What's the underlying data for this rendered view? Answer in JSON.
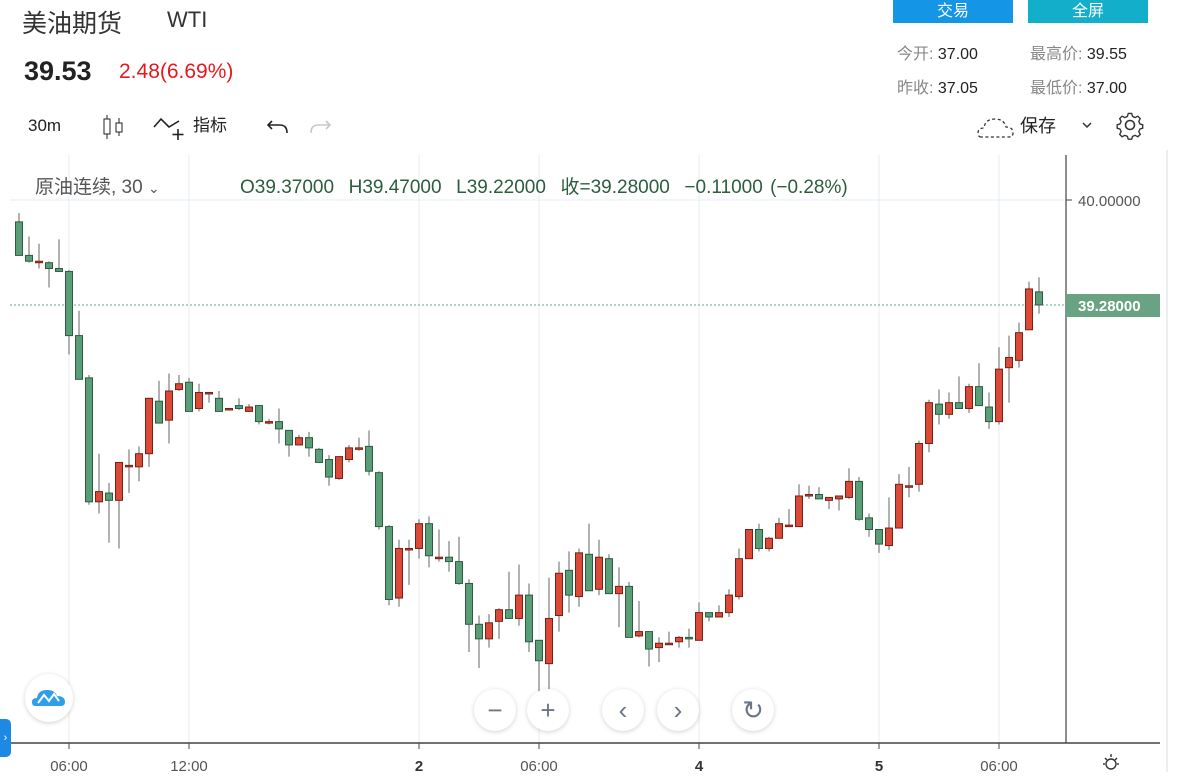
{
  "header": {
    "title": "美油期货",
    "symbol": "WTI",
    "price": "39.53",
    "change": "2.48(6.69%)",
    "change_color": "#e8191c",
    "trade_button": "交易",
    "fullscreen_button": "全屏",
    "stats": {
      "open_label": "今开:",
      "open": "37.00",
      "prev_close_label": "昨收:",
      "prev_close": "37.05",
      "high_label": "最高价:",
      "high": "39.55",
      "low_label": "最低价:",
      "low": "37.00"
    }
  },
  "toolbar": {
    "interval": "30m",
    "chart_type_icon": "candlestick-icon",
    "indicators_label": "指标",
    "undo_icon": "undo-icon",
    "redo_icon": "redo-icon",
    "save_label": "保存",
    "settings_icon": "gear-icon"
  },
  "legend": {
    "series_label": "原油连续, 30",
    "o": "O39.37000",
    "h": "H39.47000",
    "l": "L39.22000",
    "c": "收=39.28000",
    "chg": "−0.11000 (−0.28%)"
  },
  "controls": {
    "zoom_out": "−",
    "zoom_in": "+",
    "scroll_left": "‹",
    "scroll_right": "›",
    "reset": "↻"
  },
  "colors": {
    "up": "#d94a38",
    "down": "#5a9e78",
    "last_price_tag": "#6aa384",
    "trade_button": "#1595e6",
    "fullscreen_button": "#13aec9"
  },
  "chart_data": {
    "type": "candlestick",
    "interval": "30m",
    "y_tick_labels": [
      "40.00000"
    ],
    "last_price_label": "39.28000",
    "last_price": 39.28,
    "ylim": [
      36.28,
      40.31
    ],
    "grid": true,
    "x_ticks": [
      {
        "label": "06:00",
        "candle": 5,
        "day": false
      },
      {
        "label": "12:00",
        "candle": 17,
        "day": false
      },
      {
        "label": "2",
        "candle": 40,
        "day": true
      },
      {
        "label": "06:00",
        "candle": 52,
        "day": false
      },
      {
        "label": "4",
        "candle": 68,
        "day": true
      },
      {
        "label": "5",
        "candle": 86,
        "day": true
      },
      {
        "label": "06:00",
        "candle": 98,
        "day": false
      }
    ],
    "ohlc_fields": [
      "open",
      "high",
      "low",
      "close"
    ],
    "candles": [
      [
        39.85,
        39.91,
        39.62,
        39.62
      ],
      [
        39.62,
        39.75,
        39.57,
        39.58
      ],
      [
        39.58,
        39.7,
        39.53,
        39.58
      ],
      [
        39.57,
        39.58,
        39.4,
        39.53
      ],
      [
        39.53,
        39.73,
        39.51,
        39.51
      ],
      [
        39.51,
        39.52,
        38.94,
        39.07
      ],
      [
        39.07,
        39.24,
        38.77,
        38.77
      ],
      [
        38.78,
        38.8,
        37.91,
        37.93
      ],
      [
        37.93,
        38.26,
        37.85,
        38.0
      ],
      [
        37.99,
        38.06,
        37.65,
        37.94
      ],
      [
        37.94,
        38.2,
        37.61,
        38.2
      ],
      [
        38.18,
        38.29,
        37.99,
        38.18
      ],
      [
        38.17,
        38.31,
        38.07,
        38.26
      ],
      [
        38.26,
        38.64,
        38.17,
        38.64
      ],
      [
        38.62,
        38.76,
        38.47,
        38.47
      ],
      [
        38.49,
        38.81,
        38.33,
        38.69
      ],
      [
        38.7,
        38.8,
        38.69,
        38.74
      ],
      [
        38.75,
        38.78,
        38.55,
        38.55
      ],
      [
        38.57,
        38.74,
        38.55,
        38.68
      ],
      [
        38.68,
        38.68,
        38.61,
        38.68
      ],
      [
        38.64,
        38.69,
        38.55,
        38.55
      ],
      [
        38.57,
        38.57,
        38.57,
        38.57
      ],
      [
        38.59,
        38.64,
        38.56,
        38.57
      ],
      [
        38.55,
        38.6,
        38.55,
        38.58
      ],
      [
        38.59,
        38.59,
        38.46,
        38.48
      ],
      [
        38.48,
        38.5,
        38.46,
        38.48
      ],
      [
        38.48,
        38.57,
        38.33,
        38.43
      ],
      [
        38.42,
        38.42,
        38.24,
        38.32
      ],
      [
        38.32,
        38.39,
        38.32,
        38.37
      ],
      [
        38.37,
        38.41,
        38.24,
        38.3
      ],
      [
        38.29,
        38.3,
        38.2,
        38.2
      ],
      [
        38.22,
        38.25,
        38.04,
        38.1
      ],
      [
        38.09,
        38.24,
        38.08,
        38.24
      ],
      [
        38.22,
        38.32,
        38.2,
        38.3
      ],
      [
        38.3,
        38.37,
        38.28,
        38.3
      ],
      [
        38.31,
        38.42,
        38.11,
        38.14
      ],
      [
        38.13,
        38.14,
        37.74,
        37.76
      ],
      [
        37.76,
        37.77,
        37.22,
        37.26
      ],
      [
        37.27,
        37.67,
        37.21,
        37.61
      ],
      [
        37.61,
        37.67,
        37.36,
        37.61
      ],
      [
        37.61,
        37.81,
        37.54,
        37.78
      ],
      [
        37.78,
        37.83,
        37.48,
        37.56
      ],
      [
        37.55,
        37.74,
        37.52,
        37.55
      ],
      [
        37.55,
        37.66,
        37.45,
        37.52
      ],
      [
        37.52,
        37.69,
        37.36,
        37.37
      ],
      [
        37.37,
        37.4,
        36.9,
        37.09
      ],
      [
        37.09,
        37.15,
        36.79,
        36.99
      ],
      [
        36.99,
        37.16,
        36.93,
        37.1
      ],
      [
        37.11,
        37.2,
        36.99,
        37.19
      ],
      [
        37.19,
        37.45,
        37.13,
        37.13
      ],
      [
        37.13,
        37.5,
        37.08,
        37.29
      ],
      [
        37.29,
        37.37,
        36.9,
        36.97
      ],
      [
        36.98,
        36.98,
        36.63,
        36.84
      ],
      [
        36.82,
        37.41,
        36.63,
        37.13
      ],
      [
        37.15,
        37.52,
        37.04,
        37.44
      ],
      [
        37.46,
        37.59,
        37.17,
        37.29
      ],
      [
        37.28,
        37.61,
        37.21,
        37.58
      ],
      [
        37.57,
        37.78,
        37.32,
        37.32
      ],
      [
        37.33,
        37.67,
        37.29,
        37.55
      ],
      [
        37.54,
        37.57,
        37.3,
        37.3
      ],
      [
        37.3,
        37.48,
        37.07,
        37.35
      ],
      [
        37.35,
        37.38,
        37.0,
        37.0
      ],
      [
        37.01,
        37.25,
        37.0,
        37.04
      ],
      [
        37.04,
        37.04,
        36.8,
        36.92
      ],
      [
        36.93,
        37.0,
        36.83,
        36.96
      ],
      [
        36.96,
        37.04,
        36.95,
        36.96
      ],
      [
        36.97,
        37.01,
        36.93,
        37.0
      ],
      [
        37.0,
        37.06,
        36.93,
        36.99
      ],
      [
        36.98,
        37.24,
        36.98,
        37.17
      ],
      [
        37.17,
        37.17,
        37.11,
        37.14
      ],
      [
        37.14,
        37.22,
        37.14,
        37.17
      ],
      [
        37.17,
        37.33,
        37.14,
        37.29
      ],
      [
        37.28,
        37.61,
        37.26,
        37.54
      ],
      [
        37.54,
        37.74,
        37.54,
        37.74
      ],
      [
        37.74,
        37.78,
        37.59,
        37.61
      ],
      [
        37.61,
        37.69,
        37.59,
        37.68
      ],
      [
        37.68,
        37.82,
        37.68,
        37.78
      ],
      [
        37.77,
        37.88,
        37.77,
        37.77
      ],
      [
        37.76,
        38.05,
        37.76,
        37.97
      ],
      [
        37.98,
        38.04,
        37.95,
        37.98
      ],
      [
        37.98,
        38.03,
        37.95,
        37.95
      ],
      [
        37.94,
        37.96,
        37.88,
        37.96
      ],
      [
        37.95,
        37.97,
        37.87,
        37.97
      ],
      [
        37.96,
        38.16,
        37.95,
        38.07
      ],
      [
        38.07,
        38.1,
        37.8,
        37.81
      ],
      [
        37.82,
        37.85,
        37.69,
        37.74
      ],
      [
        37.74,
        37.74,
        37.58,
        37.64
      ],
      [
        37.63,
        37.96,
        37.6,
        37.75
      ],
      [
        37.75,
        38.12,
        37.75,
        38.05
      ],
      [
        38.04,
        38.17,
        37.96,
        38.04
      ],
      [
        38.05,
        38.35,
        38.0,
        38.33
      ],
      [
        38.33,
        38.63,
        38.27,
        38.61
      ],
      [
        38.6,
        38.7,
        38.46,
        38.53
      ],
      [
        38.53,
        38.68,
        38.5,
        38.61
      ],
      [
        38.61,
        38.79,
        38.57,
        38.57
      ],
      [
        38.57,
        38.74,
        38.54,
        38.72
      ],
      [
        38.72,
        38.88,
        38.59,
        38.59
      ],
      [
        38.58,
        38.68,
        38.43,
        38.48
      ],
      [
        38.48,
        38.99,
        38.46,
        38.84
      ],
      [
        38.85,
        39.07,
        38.61,
        38.92
      ],
      [
        38.9,
        39.16,
        38.85,
        39.09
      ],
      [
        39.11,
        39.44,
        39.11,
        39.39
      ],
      [
        39.37,
        39.47,
        39.22,
        39.28
      ]
    ]
  }
}
